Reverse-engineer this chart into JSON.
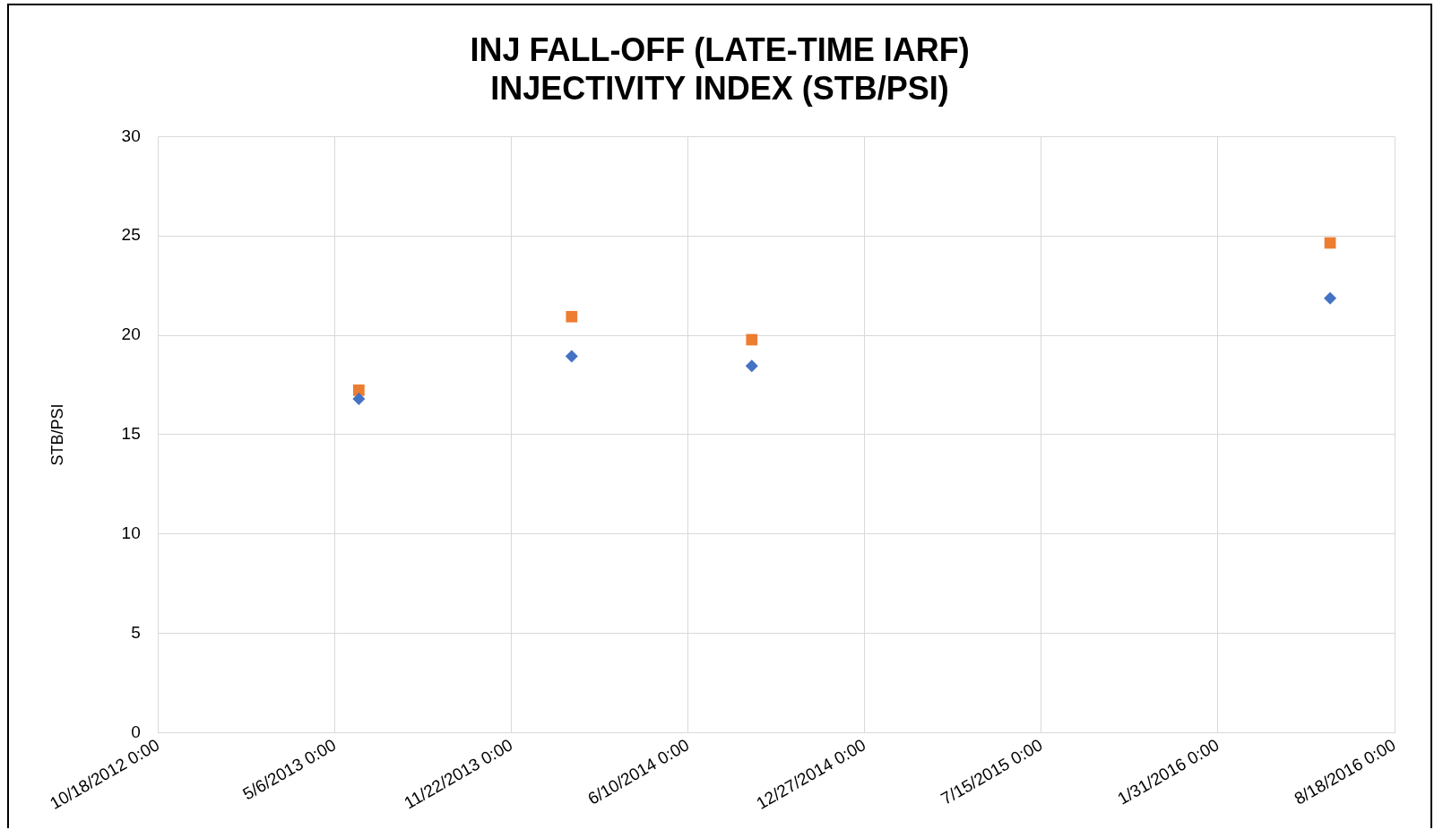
{
  "chart_data": {
    "type": "scatter",
    "title": [
      "INJ FALL-OFF (LATE-TIME IARF)",
      "INJECTIVITY INDEX (STB/PSI)"
    ],
    "ylabel": "STB/PSI",
    "x": [
      "2013-06-02",
      "2014-01-29",
      "2014-08-21",
      "2016-06-06"
    ],
    "series": [
      {
        "color": "#4472c4",
        "marker": "diamond",
        "values": [
          16.8,
          18.95,
          18.46,
          21.87
        ]
      },
      {
        "color": "#ed7d31",
        "marker": "square",
        "values": [
          17.24,
          20.94,
          19.78,
          24.65
        ]
      }
    ],
    "xlim": [
      "2012-10-18",
      "2016-08-18"
    ],
    "xticks": [
      {
        "value": "2012-10-18",
        "label": "10/18/2012 0:00"
      },
      {
        "value": "2013-05-06",
        "label": "5/6/2013 0:00"
      },
      {
        "value": "2013-11-22",
        "label": "11/22/2013 0:00"
      },
      {
        "value": "2014-06-10",
        "label": "6/10/2014 0:00"
      },
      {
        "value": "2014-12-27",
        "label": "12/27/2014 0:00"
      },
      {
        "value": "2015-07-15",
        "label": "7/15/2015 0:00"
      },
      {
        "value": "2016-01-31",
        "label": "1/31/2016 0:00"
      },
      {
        "value": "2016-08-18",
        "label": "8/18/2016 0:00"
      }
    ],
    "ylim": [
      0,
      30
    ],
    "yticks": [
      0,
      5,
      10,
      15,
      20,
      25,
      30
    ],
    "grid": true,
    "legend": false
  }
}
